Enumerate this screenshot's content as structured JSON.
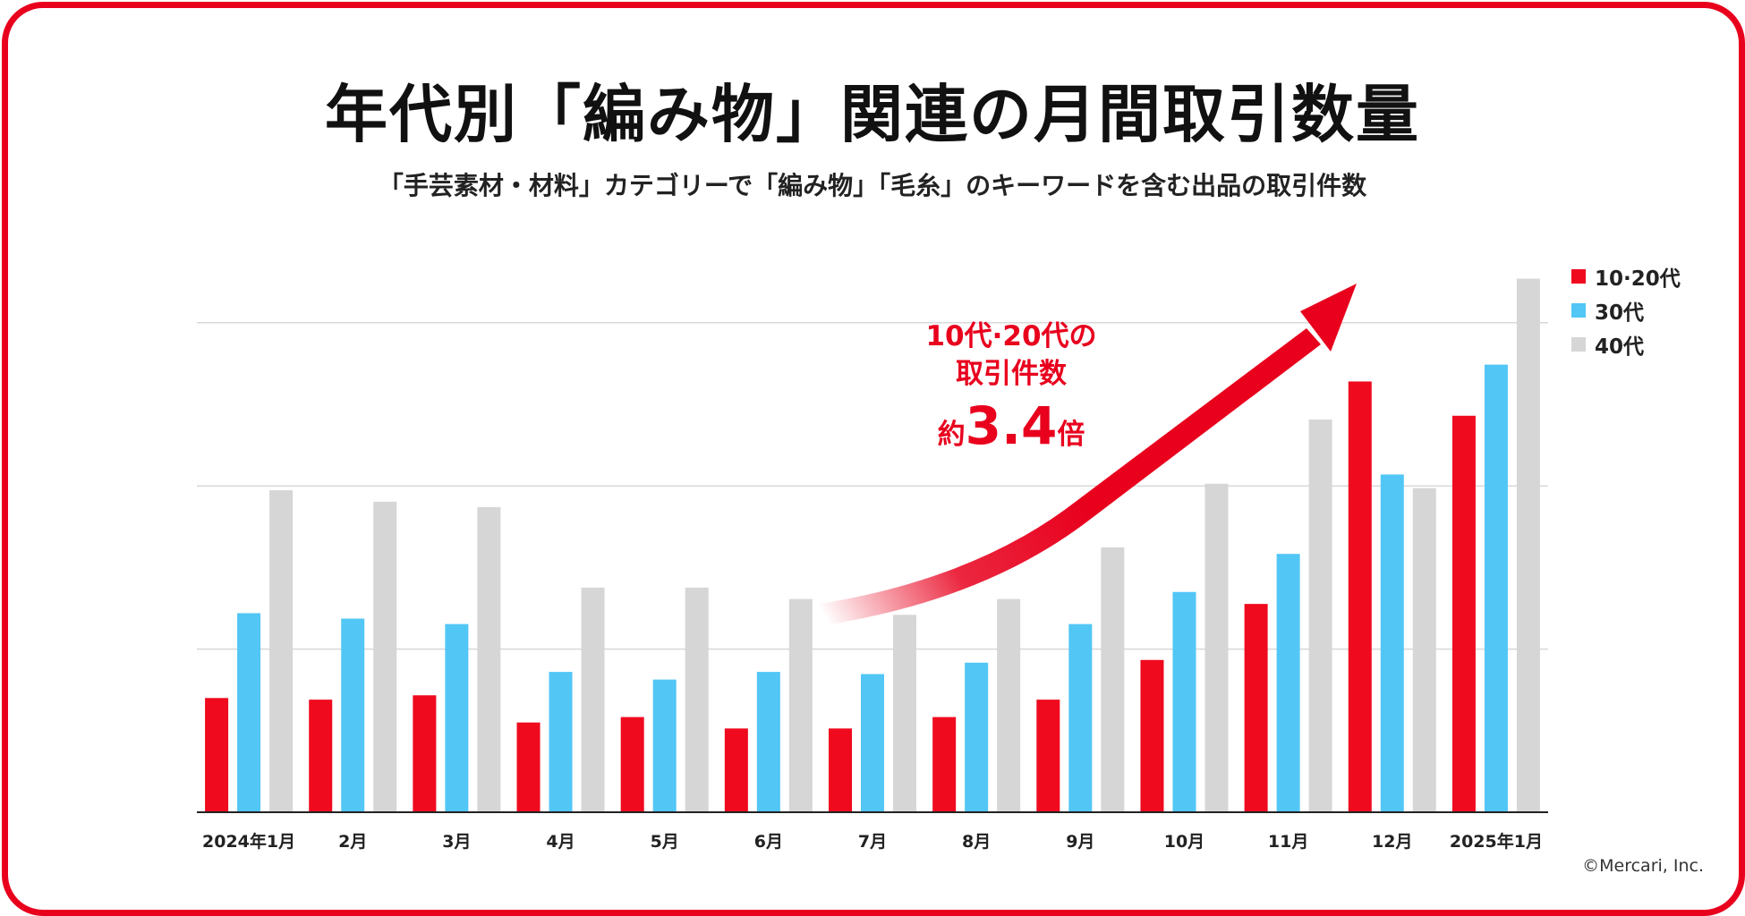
{
  "title": "年代別「編み物」関連の月間取引数量",
  "subtitle": "「手芸素材・材料」カテゴリーで「編み物」「毛糸」のキーワードを含む出品の取引件数",
  "annotation": {
    "line1": "10代·20代の",
    "line2": "取引件数",
    "prefix": "約",
    "multiplier": "3.4",
    "suffix": "倍"
  },
  "copyright": "©Mercari, Inc.",
  "colors": {
    "frame": "#e8001d",
    "series_10_20": "#ef0a1e",
    "series_30": "#52c6f5",
    "series_40": "#d6d6d6",
    "arrow": "#e8001d"
  },
  "chart_data": {
    "type": "bar",
    "title": "年代別「編み物」関連の月間取引数量",
    "xlabel": "",
    "ylabel": "",
    "ylim": [
      0,
      100
    ],
    "gridlines": [
      30,
      60,
      90
    ],
    "y_tick_labels_visible": false,
    "legend_position": "top-right",
    "categories": [
      "2024年1月",
      "2月",
      "3月",
      "4月",
      "5月",
      "6月",
      "7月",
      "8月",
      "9月",
      "10月",
      "11月",
      "12月",
      "2025年1月"
    ],
    "series": [
      {
        "name": "10·20代",
        "values": [
          21,
          20.7,
          21.5,
          16.5,
          17.5,
          15.4,
          15.4,
          17.5,
          20.7,
          28,
          38.3,
          79.2,
          72.9
        ]
      },
      {
        "name": "30代",
        "values": [
          36.6,
          35.6,
          34.6,
          25.8,
          24.4,
          25.8,
          25.4,
          27.5,
          34.6,
          40.5,
          47.5,
          62.1,
          82.3
        ]
      },
      {
        "name": "40代",
        "values": [
          59.2,
          57.1,
          56.1,
          41.3,
          41.3,
          39.2,
          36.3,
          39.2,
          48.7,
          60.4,
          72.2,
          59.6,
          98.1
        ]
      }
    ],
    "annotation_text": "10代·20代の取引件数 約3.4倍"
  }
}
